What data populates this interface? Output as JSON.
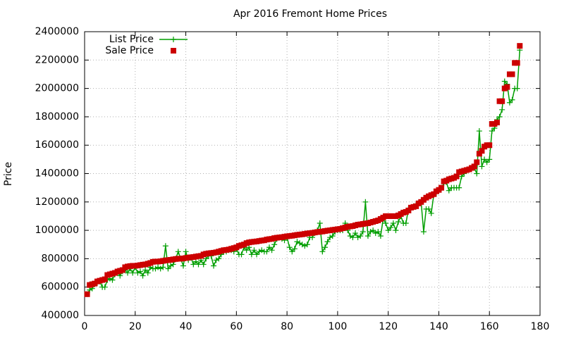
{
  "chart_data": {
    "type": "line",
    "title": "Apr 2016 Fremont Home Prices",
    "ylabel": "Price",
    "x": [
      1,
      2,
      3,
      4,
      5,
      6,
      7,
      8,
      9,
      10,
      11,
      12,
      13,
      14,
      15,
      16,
      17,
      18,
      19,
      20,
      21,
      22,
      23,
      24,
      25,
      26,
      27,
      28,
      29,
      30,
      31,
      32,
      33,
      34,
      35,
      36,
      37,
      38,
      39,
      40,
      41,
      42,
      43,
      44,
      45,
      46,
      47,
      48,
      49,
      50,
      51,
      52,
      53,
      54,
      55,
      56,
      57,
      58,
      59,
      60,
      61,
      62,
      63,
      64,
      65,
      66,
      67,
      68,
      69,
      70,
      71,
      72,
      73,
      74,
      75,
      76,
      77,
      78,
      79,
      80,
      81,
      82,
      83,
      84,
      85,
      86,
      87,
      88,
      89,
      90,
      91,
      92,
      93,
      94,
      95,
      96,
      97,
      98,
      99,
      100,
      101,
      102,
      103,
      104,
      105,
      106,
      107,
      108,
      109,
      110,
      111,
      112,
      113,
      114,
      115,
      116,
      117,
      118,
      119,
      120,
      121,
      122,
      123,
      124,
      125,
      126,
      127,
      128,
      129,
      130,
      131,
      132,
      133,
      134,
      135,
      136,
      137,
      138,
      139,
      140,
      141,
      142,
      143,
      144,
      145,
      146,
      147,
      148,
      149,
      150,
      151,
      152,
      153,
      154,
      155,
      156,
      157,
      158,
      159,
      160,
      161,
      162,
      163,
      164,
      165,
      166,
      167,
      168,
      169,
      170,
      171,
      172
    ],
    "series": [
      {
        "name": "List Price",
        "color": "#009e00",
        "style": "linespoints",
        "values": [
          550000,
          580000,
          590000,
          620000,
          630000,
          640000,
          600000,
          600000,
          650000,
          660000,
          650000,
          690000,
          700000,
          680000,
          710000,
          720000,
          700000,
          730000,
          700000,
          740000,
          700000,
          710000,
          680000,
          720000,
          700000,
          740000,
          730000,
          730000,
          740000,
          730000,
          740000,
          890000,
          730000,
          750000,
          760000,
          800000,
          850000,
          800000,
          750000,
          850000,
          790000,
          810000,
          760000,
          780000,
          760000,
          790000,
          760000,
          800000,
          820000,
          820000,
          750000,
          790000,
          800000,
          830000,
          850000,
          850000,
          860000,
          860000,
          850000,
          870000,
          830000,
          830000,
          880000,
          860000,
          880000,
          830000,
          860000,
          830000,
          850000,
          860000,
          850000,
          850000,
          880000,
          860000,
          900000,
          940000,
          950000,
          940000,
          930000,
          950000,
          880000,
          850000,
          870000,
          920000,
          910000,
          900000,
          890000,
          900000,
          950000,
          950000,
          980000,
          1000000,
          1050000,
          850000,
          880000,
          920000,
          950000,
          960000,
          990000,
          1000000,
          1000000,
          1000000,
          1050000,
          1000000,
          960000,
          950000,
          980000,
          950000,
          960000,
          990000,
          1200000,
          960000,
          990000,
          1000000,
          980000,
          990000,
          960000,
          1080000,
          1050000,
          1000000,
          1020000,
          1050000,
          1000000,
          1060000,
          1100000,
          1050000,
          1050000,
          1150000,
          1160000,
          1170000,
          1180000,
          1190000,
          1200000,
          990000,
          1150000,
          1150000,
          1120000,
          1250000,
          1260000,
          1280000,
          1300000,
          1330000,
          1340000,
          1280000,
          1300000,
          1300000,
          1300000,
          1300000,
          1380000,
          1400000,
          1420000,
          1430000,
          1440000,
          1440000,
          1400000,
          1700000,
          1450000,
          1500000,
          1480000,
          1500000,
          1700000,
          1720000,
          1780000,
          1800000,
          1850000,
          2050000,
          2030000,
          1900000,
          1920000,
          2000000,
          2000000,
          2270000
        ]
      },
      {
        "name": "Sale Price",
        "color": "#cc0000",
        "style": "points",
        "values": [
          550000,
          615000,
          620000,
          625000,
          640000,
          645000,
          650000,
          655000,
          685000,
          690000,
          695000,
          700000,
          710000,
          715000,
          720000,
          740000,
          745000,
          748000,
          750000,
          750000,
          752000,
          755000,
          758000,
          760000,
          765000,
          770000,
          778000,
          780000,
          780000,
          782000,
          785000,
          788000,
          790000,
          792000,
          795000,
          798000,
          800000,
          800000,
          802000,
          805000,
          808000,
          810000,
          812000,
          815000,
          818000,
          820000,
          830000,
          835000,
          838000,
          840000,
          842000,
          845000,
          850000,
          855000,
          860000,
          862000,
          865000,
          870000,
          875000,
          880000,
          890000,
          895000,
          900000,
          910000,
          915000,
          918000,
          920000,
          922000,
          925000,
          928000,
          930000,
          935000,
          938000,
          940000,
          945000,
          948000,
          950000,
          952000,
          955000,
          958000,
          960000,
          962000,
          965000,
          968000,
          970000,
          972000,
          975000,
          978000,
          980000,
          982000,
          985000,
          988000,
          990000,
          992000,
          995000,
          998000,
          1000000,
          1003000,
          1005000,
          1008000,
          1010000,
          1015000,
          1020000,
          1025000,
          1028000,
          1030000,
          1035000,
          1040000,
          1042000,
          1045000,
          1048000,
          1050000,
          1055000,
          1060000,
          1065000,
          1070000,
          1080000,
          1090000,
          1100000,
          1100000,
          1100000,
          1100000,
          1100000,
          1105000,
          1115000,
          1125000,
          1130000,
          1140000,
          1160000,
          1165000,
          1170000,
          1190000,
          1200000,
          1215000,
          1230000,
          1240000,
          1248000,
          1255000,
          1275000,
          1285000,
          1300000,
          1345000,
          1350000,
          1360000,
          1365000,
          1370000,
          1380000,
          1410000,
          1415000,
          1420000,
          1425000,
          1430000,
          1440000,
          1450000,
          1480000,
          1540000,
          1560000,
          1590000,
          1600000,
          1600000,
          1750000,
          1750000,
          1760000,
          1910000,
          1910000,
          2000000,
          2010000,
          2100000,
          2100000,
          2180000,
          2180000,
          2300000
        ]
      }
    ],
    "xlim": [
      0,
      180
    ],
    "xticks": [
      0,
      20,
      40,
      60,
      80,
      100,
      120,
      140,
      160,
      180
    ],
    "ylim": [
      400000,
      2400000
    ],
    "yticks": [
      400000,
      600000,
      800000,
      1000000,
      1200000,
      1400000,
      1600000,
      1800000,
      2000000,
      2200000,
      2400000
    ],
    "grid": true,
    "legend": "top-left"
  }
}
